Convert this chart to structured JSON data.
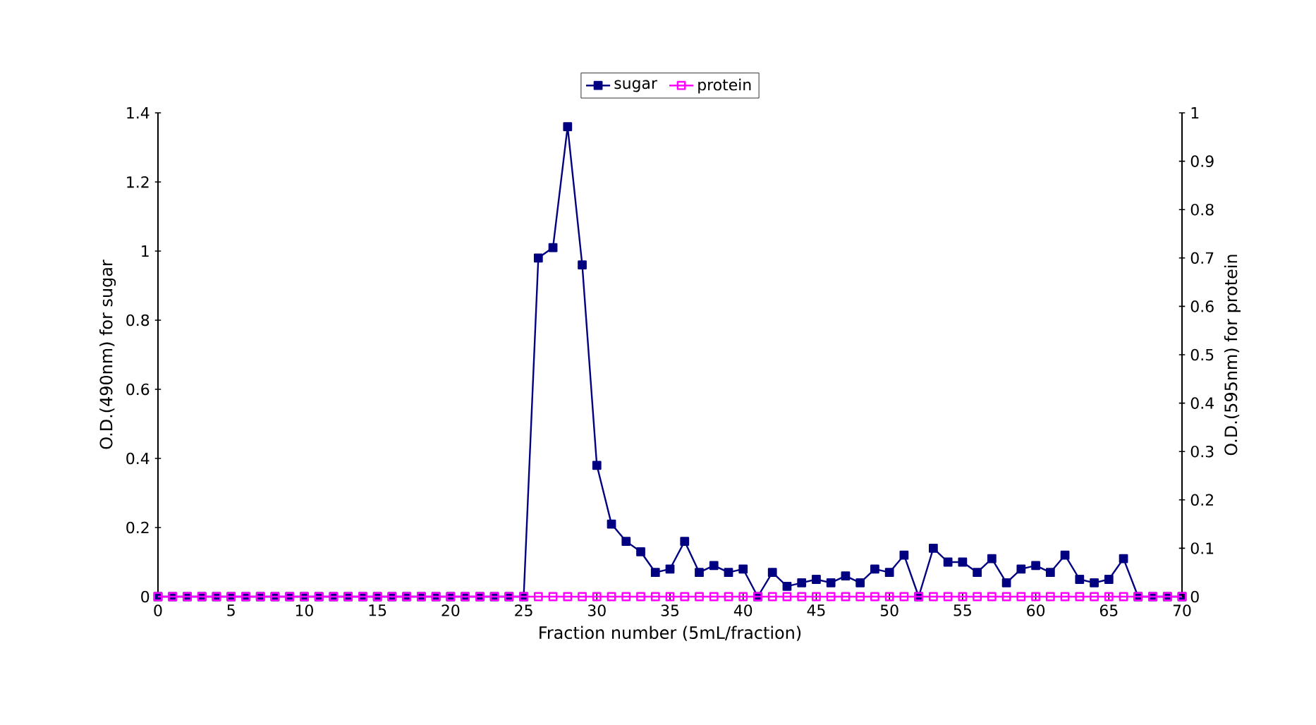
{
  "chart_data": {
    "type": "line",
    "xlabel": "Fraction number (5mL/fraction)",
    "ylabel": "O.D.(490nm) for sugar",
    "y2label": "O.D.(595nm) for protein",
    "x": [
      0,
      1,
      2,
      3,
      4,
      5,
      6,
      7,
      8,
      9,
      10,
      11,
      12,
      13,
      14,
      15,
      16,
      17,
      18,
      19,
      20,
      21,
      22,
      23,
      24,
      25,
      26,
      27,
      28,
      29,
      30,
      31,
      32,
      33,
      34,
      35,
      36,
      37,
      38,
      39,
      40,
      41,
      42,
      43,
      44,
      45,
      46,
      47,
      48,
      49,
      50,
      51,
      52,
      53,
      54,
      55,
      56,
      57,
      58,
      59,
      60,
      61,
      62,
      63,
      64,
      65,
      66,
      67,
      68,
      69,
      70
    ],
    "series": [
      {
        "name": "sugar",
        "color": "#000080",
        "values": [
          0,
          0,
          0,
          0,
          0,
          0,
          0,
          0,
          0,
          0,
          0,
          0,
          0,
          0,
          0,
          0,
          0,
          0,
          0,
          0,
          0,
          0,
          0,
          0,
          0,
          0,
          0.98,
          1.01,
          1.36,
          0.96,
          0.38,
          0.21,
          0.16,
          0.13,
          0.07,
          0.08,
          0.16,
          0.07,
          0.09,
          0.07,
          0.08,
          0,
          0.07,
          0.03,
          0.04,
          0.05,
          0.04,
          0.06,
          0.04,
          0.08,
          0.07,
          0.12,
          0,
          0.14,
          0.1,
          0.1,
          0.07,
          0.11,
          0.04,
          0.08,
          0.09,
          0.07,
          0.12,
          0.05,
          0.04,
          0.05,
          0.11,
          0,
          0,
          0,
          0
        ]
      },
      {
        "name": "protein",
        "color": "#ff00ff",
        "axis": "y2",
        "values": [
          0,
          0,
          0,
          0,
          0,
          0,
          0,
          0,
          0,
          0,
          0,
          0,
          0,
          0,
          0,
          0,
          0,
          0,
          0,
          0,
          0,
          0,
          0,
          0,
          0,
          0,
          0,
          0,
          0,
          0,
          0,
          0,
          0,
          0,
          0,
          0,
          0,
          0,
          0,
          0,
          0,
          0,
          0,
          0,
          0,
          0,
          0,
          0,
          0,
          0,
          0,
          0,
          0,
          0,
          0,
          0,
          0,
          0,
          0,
          0,
          0,
          0,
          0,
          0,
          0,
          0,
          0,
          0,
          0,
          0,
          0
        ]
      }
    ],
    "xlim": [
      0,
      70
    ],
    "xticks": [
      0,
      5,
      10,
      15,
      20,
      25,
      30,
      35,
      40,
      45,
      50,
      55,
      60,
      65,
      70
    ],
    "ylim": [
      0,
      1.4
    ],
    "yticks": [
      0,
      0.2,
      0.4,
      0.6,
      0.8,
      1,
      1.2,
      1.4
    ],
    "y2lim": [
      0,
      1
    ],
    "y2ticks": [
      0,
      0.1,
      0.2,
      0.3,
      0.4,
      0.5,
      0.6,
      0.7,
      0.8,
      0.9,
      1
    ],
    "grid": false,
    "legend": "top",
    "marker": "square",
    "line_style": "solid"
  }
}
